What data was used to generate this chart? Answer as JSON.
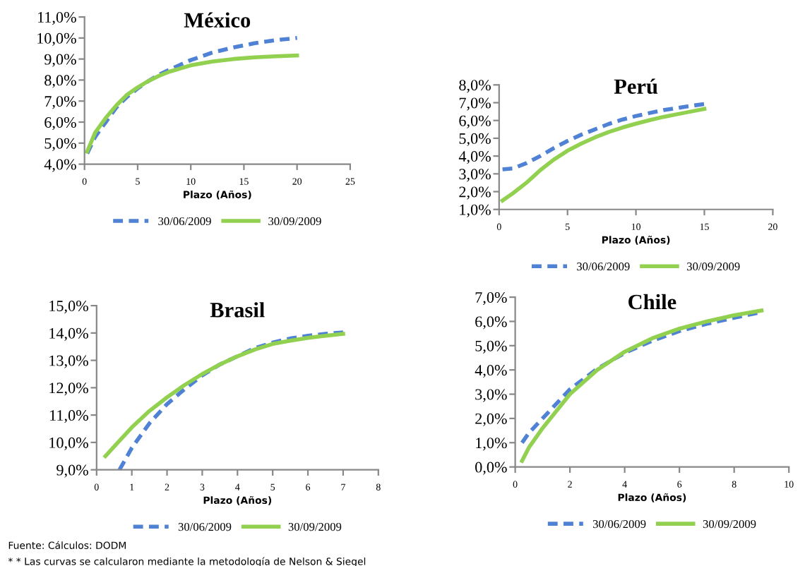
{
  "chart_data": [
    {
      "type": "line",
      "title": "México",
      "xlabel": "Plazo (Años)",
      "xlim": [
        0,
        25
      ],
      "xticks": [
        0,
        5,
        10,
        15,
        20,
        25
      ],
      "ylim": [
        4,
        11
      ],
      "yticks": [
        {
          "value": 4,
          "label": "4,0%"
        },
        {
          "value": 5,
          "label": "5,0%"
        },
        {
          "value": 6,
          "label": "6,0%"
        },
        {
          "value": 7,
          "label": "7,0%"
        },
        {
          "value": 8,
          "label": "8,0%"
        },
        {
          "value": 9,
          "label": "9,0%"
        },
        {
          "value": 10,
          "label": "10,0%"
        },
        {
          "value": 11,
          "label": "11,0%"
        }
      ],
      "grid": false,
      "legend": "bottom",
      "marker": "none",
      "series": [
        {
          "name": "30/06/2009",
          "color": "#4f81d4",
          "line_style": "dashed",
          "x": [
            0.25,
            1,
            2,
            3,
            4,
            5,
            6,
            7,
            8,
            10,
            12,
            14,
            16,
            18,
            20
          ],
          "values": [
            4.5,
            5.3,
            6.0,
            6.7,
            7.2,
            7.6,
            7.95,
            8.25,
            8.5,
            8.95,
            9.3,
            9.55,
            9.75,
            9.9,
            10.0
          ]
        },
        {
          "name": "30/09/2009",
          "color": "#92d050",
          "line_style": "solid",
          "x": [
            0.25,
            1,
            2,
            3,
            4,
            5,
            6,
            7,
            8,
            10,
            12,
            14,
            16,
            18,
            20
          ],
          "values": [
            4.6,
            5.5,
            6.2,
            6.8,
            7.3,
            7.65,
            7.95,
            8.2,
            8.4,
            8.7,
            8.88,
            9.0,
            9.08,
            9.13,
            9.17
          ]
        }
      ]
    },
    {
      "type": "line",
      "title": "Perú",
      "xlabel": "Plazo (Años)",
      "xlim": [
        0,
        20
      ],
      "xticks": [
        0,
        5,
        10,
        15,
        20
      ],
      "ylim": [
        1,
        8
      ],
      "yticks": [
        {
          "value": 1,
          "label": "1,0%"
        },
        {
          "value": 2,
          "label": "2,0%"
        },
        {
          "value": 3,
          "label": "3,0%"
        },
        {
          "value": 4,
          "label": "4,0%"
        },
        {
          "value": 5,
          "label": "5,0%"
        },
        {
          "value": 6,
          "label": "6,0%"
        },
        {
          "value": 7,
          "label": "7,0%"
        },
        {
          "value": 8,
          "label": "8,0%"
        }
      ],
      "grid": false,
      "legend": "bottom",
      "marker": "none",
      "series": [
        {
          "name": "30/06/2009",
          "color": "#4f81d4",
          "line_style": "dashed",
          "x": [
            0.25,
            1,
            2,
            3,
            4,
            5,
            6,
            7,
            8,
            9,
            10,
            11,
            12,
            13,
            14,
            15
          ],
          "values": [
            3.25,
            3.3,
            3.6,
            4.0,
            4.45,
            4.85,
            5.2,
            5.5,
            5.8,
            6.05,
            6.25,
            6.42,
            6.58,
            6.7,
            6.82,
            6.92
          ]
        },
        {
          "name": "30/09/2009",
          "color": "#92d050",
          "line_style": "solid",
          "x": [
            0.25,
            1,
            2,
            3,
            4,
            5,
            6,
            7,
            8,
            9,
            10,
            11,
            12,
            13,
            14,
            15
          ],
          "values": [
            1.5,
            1.9,
            2.5,
            3.2,
            3.8,
            4.3,
            4.7,
            5.05,
            5.35,
            5.6,
            5.82,
            6.02,
            6.2,
            6.35,
            6.5,
            6.65
          ]
        }
      ]
    },
    {
      "type": "line",
      "title": "Brasil",
      "xlabel": "Plazo (Años)",
      "xlim": [
        0,
        8
      ],
      "xticks": [
        0,
        1,
        2,
        3,
        4,
        5,
        6,
        7,
        8
      ],
      "ylim": [
        9,
        15
      ],
      "yticks": [
        {
          "value": 9,
          "label": "9,0%"
        },
        {
          "value": 10,
          "label": "10,0%"
        },
        {
          "value": 11,
          "label": "11,0%"
        },
        {
          "value": 12,
          "label": "12,0%"
        },
        {
          "value": 13,
          "label": "13,0%"
        },
        {
          "value": 14,
          "label": "14,0%"
        },
        {
          "value": 15,
          "label": "15,0%"
        }
      ],
      "grid": false,
      "legend": "bottom",
      "marker": "none",
      "series": [
        {
          "name": "30/06/2009",
          "color": "#4f81d4",
          "line_style": "dashed",
          "x": [
            0.65,
            1,
            1.5,
            2,
            2.5,
            3,
            3.5,
            4,
            4.5,
            5,
            5.5,
            6,
            6.5,
            7
          ],
          "values": [
            9.0,
            9.8,
            10.7,
            11.4,
            11.95,
            12.45,
            12.85,
            13.15,
            13.45,
            13.65,
            13.8,
            13.9,
            13.97,
            14.02
          ]
        },
        {
          "name": "30/09/2009",
          "color": "#92d050",
          "line_style": "solid",
          "x": [
            0.25,
            0.5,
            1,
            1.5,
            2,
            2.5,
            3,
            3.5,
            4,
            4.5,
            5,
            5.5,
            6,
            6.5,
            7
          ],
          "values": [
            9.5,
            9.85,
            10.55,
            11.15,
            11.65,
            12.1,
            12.5,
            12.85,
            13.15,
            13.4,
            13.6,
            13.72,
            13.82,
            13.9,
            13.97
          ]
        }
      ]
    },
    {
      "type": "line",
      "title": "Chile",
      "xlabel": "Plazo (Años)",
      "xlim": [
        0,
        10
      ],
      "xticks": [
        0,
        2,
        4,
        6,
        8,
        10
      ],
      "ylim": [
        0,
        7
      ],
      "yticks": [
        {
          "value": 0,
          "label": "0,0%"
        },
        {
          "value": 1,
          "label": "1,0%"
        },
        {
          "value": 2,
          "label": "2,0%"
        },
        {
          "value": 3,
          "label": "3,0%"
        },
        {
          "value": 4,
          "label": "4,0%"
        },
        {
          "value": 5,
          "label": "5,0%"
        },
        {
          "value": 6,
          "label": "6,0%"
        },
        {
          "value": 7,
          "label": "7,0%"
        }
      ],
      "grid": false,
      "legend": "bottom",
      "marker": "none",
      "annotations": [
        "Fuente: Cálculos: DODM",
        "* * Las curvas se calcularon mediante la metodología de Nelson & Siegel"
      ],
      "series": [
        {
          "name": "30/06/2009",
          "color": "#4f81d4",
          "line_style": "dashed",
          "x": [
            0.25,
            0.5,
            1,
            2,
            3,
            4,
            5,
            6,
            7,
            8,
            9
          ],
          "values": [
            1.0,
            1.4,
            2.0,
            3.2,
            4.05,
            4.7,
            5.2,
            5.6,
            5.9,
            6.15,
            6.38
          ]
        },
        {
          "name": "30/09/2009",
          "color": "#92d050",
          "line_style": "solid",
          "x": [
            0.25,
            0.5,
            1,
            2,
            3,
            4,
            5,
            6,
            7,
            8,
            9
          ],
          "values": [
            0.25,
            0.8,
            1.6,
            3.0,
            4.0,
            4.75,
            5.3,
            5.7,
            6.0,
            6.25,
            6.45
          ]
        }
      ]
    }
  ]
}
